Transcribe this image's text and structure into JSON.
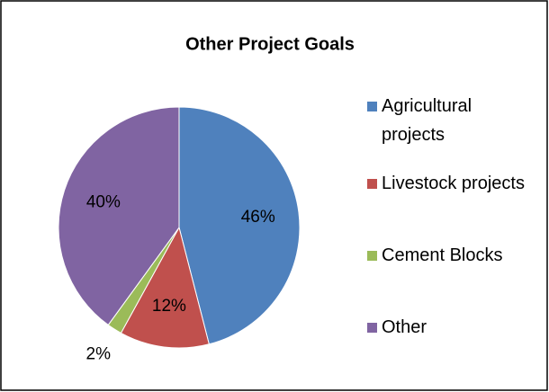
{
  "chart_data": {
    "type": "pie",
    "title": "Other Project Goals",
    "categories": [
      "Agricultural projects",
      "Livestock projects",
      "Cement Blocks",
      "Other"
    ],
    "values": [
      46,
      12,
      2,
      40
    ],
    "value_labels": [
      "46%",
      "12%",
      "2%",
      "40%"
    ],
    "colors": [
      "#4f81bd",
      "#c0504d",
      "#9bbb59",
      "#8064a2"
    ],
    "legend": "right"
  }
}
